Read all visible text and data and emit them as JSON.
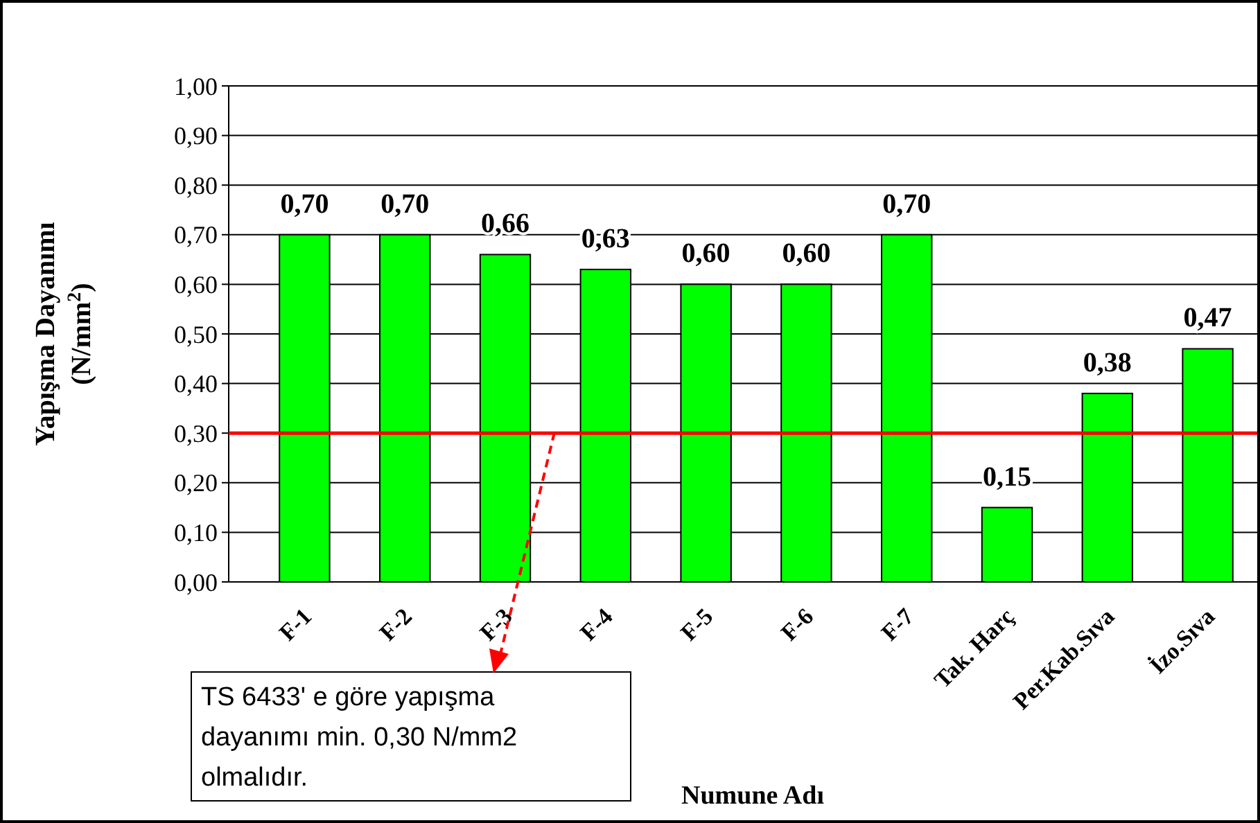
{
  "chart_data": {
    "type": "bar",
    "xlabel": "Numune Adı",
    "ylabel": "Yapışma Dayanımı (N/mm$^{2}$)",
    "categories": [
      "F-1",
      "F-2",
      "F-3",
      "F-4",
      "F-5",
      "F-6",
      "F-7",
      "Tak. Harç",
      "Per.Kab.Sıva",
      "İzo.Sıva"
    ],
    "values": [
      0.7,
      0.7,
      0.66,
      0.63,
      0.6,
      0.6,
      0.7,
      0.15,
      0.38,
      0.47
    ],
    "color": "#00ff00",
    "data_labels": true,
    "value_labels": [
      "0,70",
      "0,70",
      "0,66",
      "0,63",
      "0,60",
      "0,60",
      "0,70",
      "0,15",
      "0,38",
      "0,47"
    ],
    "ylim": [
      0,
      1
    ],
    "yticks": [
      {
        "value": 0,
        "label": "0,00"
      },
      {
        "value": 0.1,
        "label": "0,10"
      },
      {
        "value": 0.2,
        "label": "0,20"
      },
      {
        "value": 0.3,
        "label": "0,30"
      },
      {
        "value": 0.4,
        "label": "0,40"
      },
      {
        "value": 0.5,
        "label": "0,50"
      },
      {
        "value": 0.6,
        "label": "0,60"
      },
      {
        "value": 0.7,
        "label": "0,70"
      },
      {
        "value": 0.8,
        "label": "0,80"
      },
      {
        "value": 0.9,
        "label": "0,90"
      },
      {
        "value": 1,
        "label": "1,00"
      }
    ],
    "grid": "y",
    "ref_lines": [
      {
        "axis": "y",
        "value": 0.3,
        "color": "#ff0000"
      }
    ],
    "annotations": [
      "TS 6433' e göre yapışma dayanımı min. 0,30 N/mm2 olmalıdır."
    ]
  }
}
